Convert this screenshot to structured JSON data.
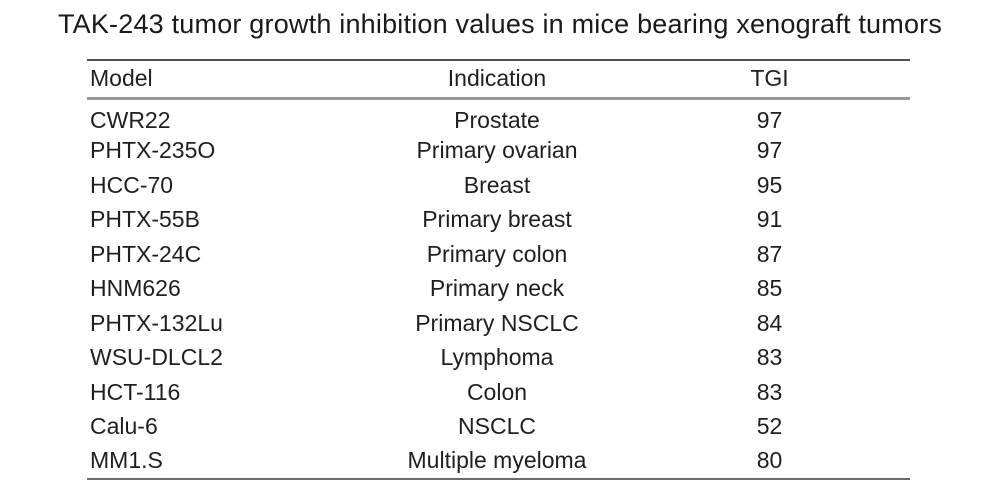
{
  "figure": {
    "title": "TAK-243 tumor growth inhibition values in mice bearing xenograft tumors"
  },
  "table": {
    "columns": [
      "Model",
      "Indication",
      "TGI"
    ],
    "rows": [
      {
        "model": "CWR22",
        "indication": "Prostate",
        "tgi": "97"
      },
      {
        "model": "PHTX-235O",
        "indication": "Primary ovarian",
        "tgi": "97"
      },
      {
        "model": "HCC-70",
        "indication": "Breast",
        "tgi": "95"
      },
      {
        "model": "PHTX-55B",
        "indication": "Primary breast",
        "tgi": "91"
      },
      {
        "model": "PHTX-24C",
        "indication": "Primary colon",
        "tgi": "87"
      },
      {
        "model": "HNM626",
        "indication": "Primary neck",
        "tgi": "85"
      },
      {
        "model": "PHTX-132Lu",
        "indication": "Primary NSCLC",
        "tgi": "84"
      },
      {
        "model": "WSU-DLCL2",
        "indication": "Lymphoma",
        "tgi": "83"
      },
      {
        "model": "HCT-116",
        "indication": "Colon",
        "tgi": "83"
      },
      {
        "model": "Calu-6",
        "indication": "NSCLC",
        "tgi": "52"
      },
      {
        "model": "MM1.S",
        "indication": "Multiple myeloma",
        "tgi": "80"
      }
    ]
  },
  "chart_data": {
    "type": "table",
    "title": "TAK-243 tumor growth inhibition values in mice bearing xenograft tumors",
    "columns": [
      "Model",
      "Indication",
      "TGI"
    ],
    "rows": [
      [
        "CWR22",
        "Prostate",
        97
      ],
      [
        "PHTX-235O",
        "Primary ovarian",
        97
      ],
      [
        "HCC-70",
        "Breast",
        95
      ],
      [
        "PHTX-55B",
        "Primary breast",
        91
      ],
      [
        "PHTX-24C",
        "Primary colon",
        87
      ],
      [
        "HNM626",
        "Primary neck",
        85
      ],
      [
        "PHTX-132Lu",
        "Primary NSCLC",
        84
      ],
      [
        "WSU-DLCL2",
        "Lymphoma",
        83
      ],
      [
        "HCT-116",
        "Colon",
        83
      ],
      [
        "Calu-6",
        "NSCLC",
        52
      ],
      [
        "MM1.S",
        "Multiple myeloma",
        80
      ]
    ],
    "layout": {
      "model_column_align": "left",
      "indication_column_align": "center",
      "tgi_column_align": "center",
      "rules": [
        "top",
        "below-header",
        "bottom"
      ]
    }
  },
  "colors": {
    "background": "#ffffff",
    "text": "#1c1c1c",
    "rule_top": "#4f4f4f",
    "rule_header": "#979797",
    "rule_bottom": "#6b6b6b"
  }
}
